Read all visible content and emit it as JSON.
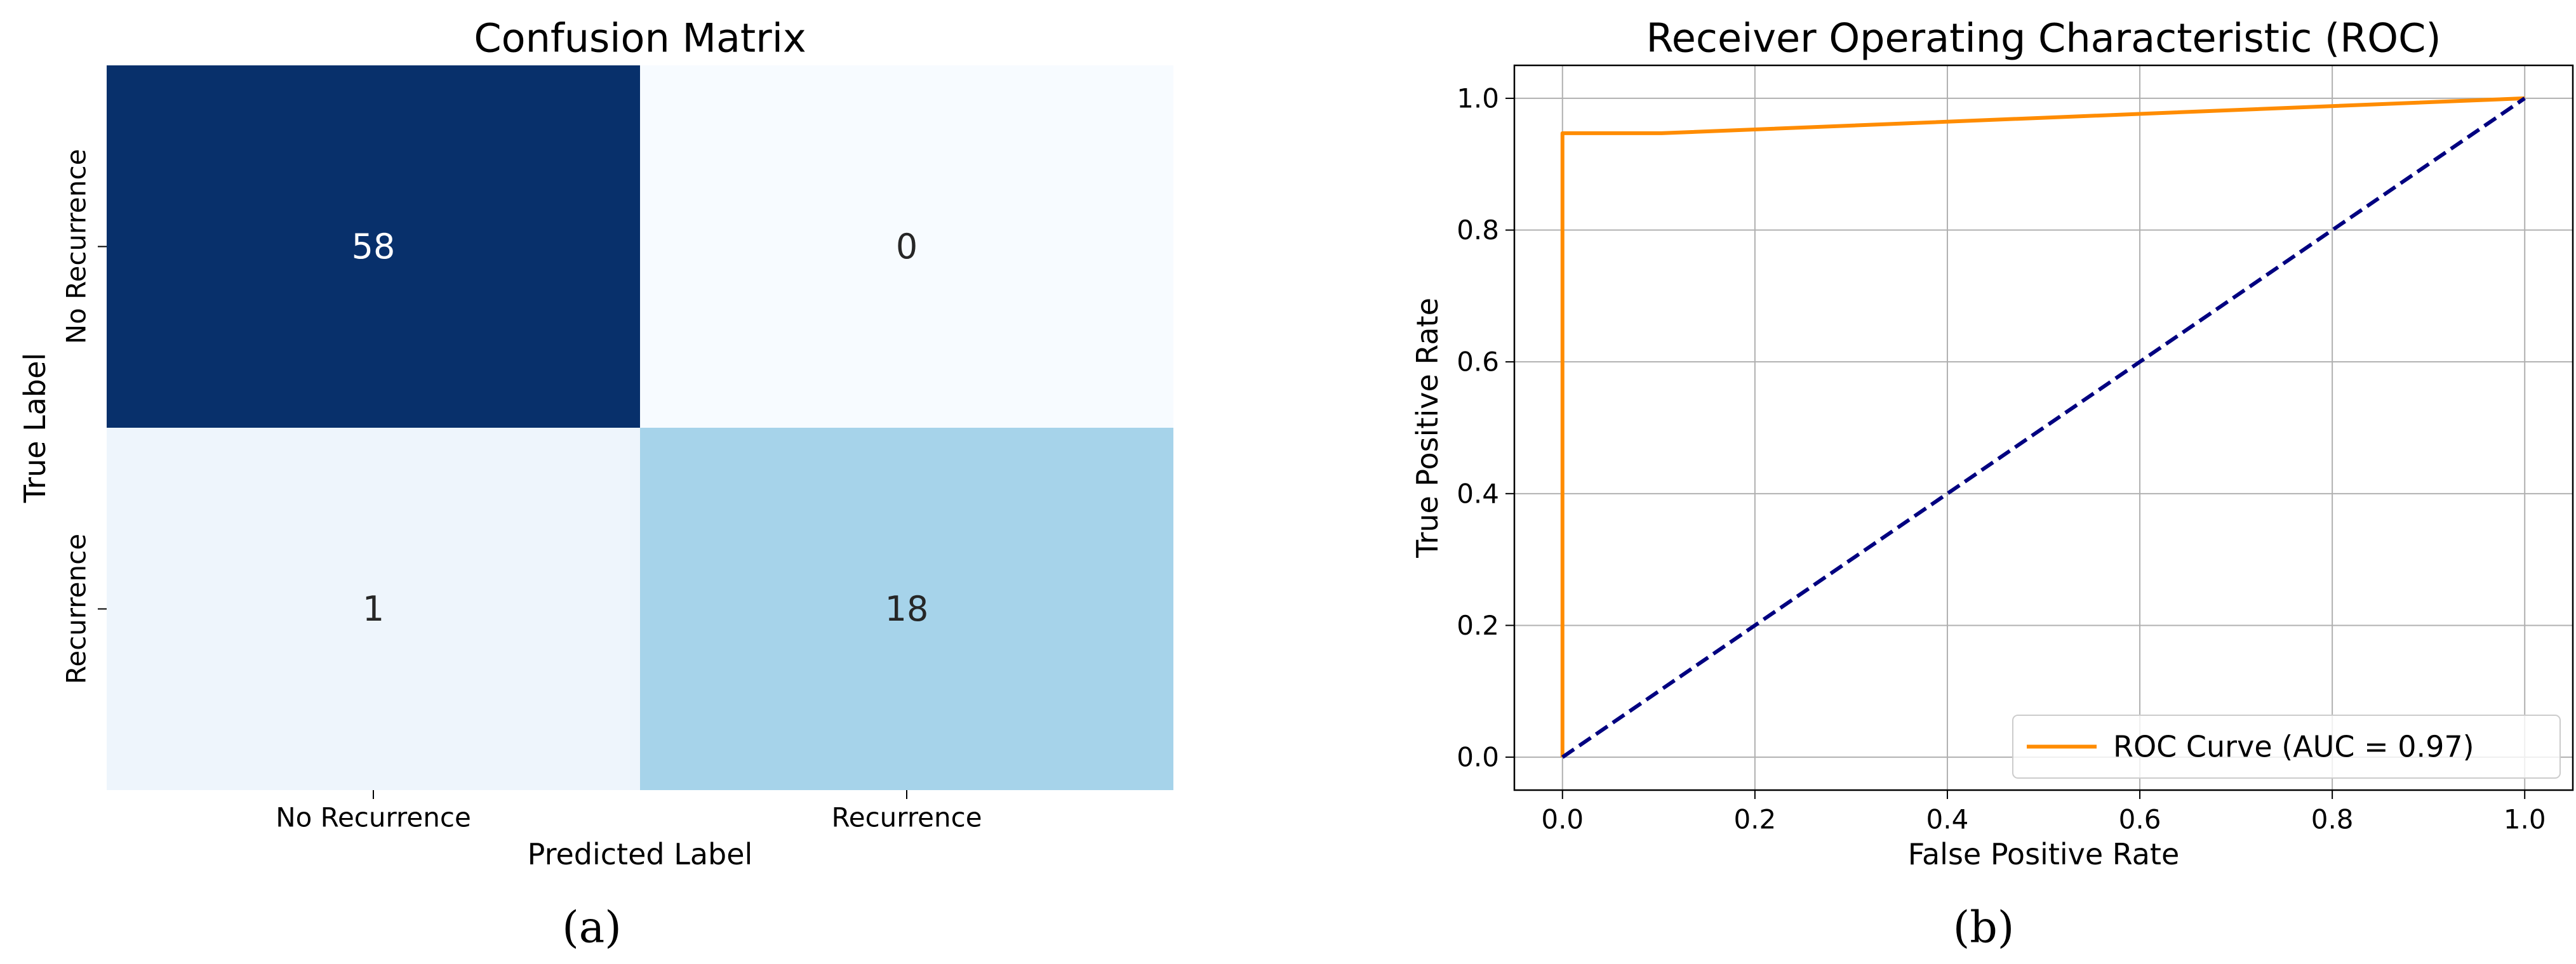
{
  "chart_data": [
    {
      "type": "heatmap",
      "title": "Confusion Matrix",
      "xlabel": "Predicted Label",
      "ylabel": "True Label",
      "x_categories": [
        "No Recurrence",
        "Recurrence"
      ],
      "y_categories": [
        "No Recurrence",
        "Recurrence"
      ],
      "values": [
        [
          58,
          0
        ],
        [
          1,
          18
        ]
      ],
      "colormap": "Blues",
      "colors": {
        "58": "#08306b",
        "0": "#f7fbff",
        "1": "#eef5fc",
        "18": "#a6d3ea"
      },
      "panel_label": "(a)"
    },
    {
      "type": "line",
      "title": "Receiver Operating Characteristic (ROC)",
      "xlabel": "False Positive Rate",
      "ylabel": "True Positive Rate",
      "xlim": [
        -0.05,
        1.05
      ],
      "ylim": [
        -0.05,
        1.05
      ],
      "xticks": [
        "0.0",
        "0.2",
        "0.4",
        "0.6",
        "0.8",
        "1.0"
      ],
      "yticks": [
        "0.0",
        "0.2",
        "0.4",
        "0.6",
        "0.8",
        "1.0"
      ],
      "grid": true,
      "legend_position": "bottom-right",
      "series": [
        {
          "name": "ROC Curve (AUC = 0.97)",
          "color": "#ff8c00",
          "style": "solid",
          "x": [
            0.0,
            0.0,
            0.103,
            1.0
          ],
          "y": [
            0.0,
            0.947,
            0.947,
            1.0
          ]
        },
        {
          "color": "#000080",
          "style": "dashed",
          "x": [
            0.0,
            1.0
          ],
          "y": [
            0.0,
            1.0
          ]
        }
      ],
      "panel_label": "(b)"
    }
  ]
}
